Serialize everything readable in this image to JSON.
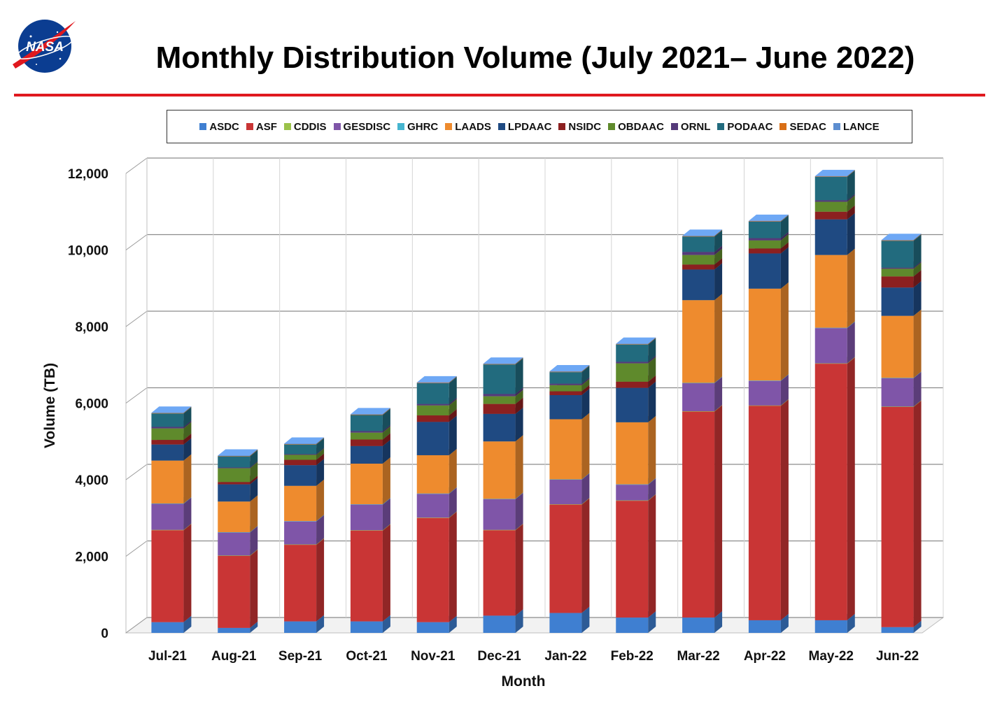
{
  "page": {
    "title": "Monthly Distribution Volume (July 2021– June 2022)",
    "logo_text": "NASA"
  },
  "chart_data": {
    "type": "bar",
    "stacked": true,
    "style": "3d",
    "title": "",
    "xlabel": "Month",
    "ylabel": "Volume (TB)",
    "ylim": [
      0,
      12000
    ],
    "yticks": [
      0,
      2000,
      4000,
      6000,
      8000,
      10000,
      12000
    ],
    "ytick_labels": [
      "0",
      "2,000",
      "4,000",
      "6,000",
      "8,000",
      "10,000",
      "12,000"
    ],
    "grid": true,
    "legend_position": "top",
    "categories": [
      "Jul-21",
      "Aug-21",
      "Sep-21",
      "Oct-21",
      "Nov-21",
      "Dec-21",
      "Jan-22",
      "Feb-22",
      "Mar-22",
      "Apr-22",
      "May-22",
      "Jun-22"
    ],
    "series": [
      {
        "name": "ASDC",
        "color": "#3f7fd1",
        "values": [
          280,
          130,
          300,
          300,
          280,
          450,
          520,
          400,
          400,
          330,
          330,
          150
        ]
      },
      {
        "name": "ASF",
        "color": "#c93535",
        "values": [
          2400,
          1880,
          2000,
          2370,
          2720,
          2230,
          2830,
          3050,
          5380,
          5600,
          6700,
          5750
        ]
      },
      {
        "name": "CDDIS",
        "color": "#9bc24a",
        "values": [
          10,
          10,
          10,
          10,
          10,
          10,
          10,
          10,
          10,
          10,
          10,
          10
        ]
      },
      {
        "name": "GESDISC",
        "color": "#7f55a8",
        "values": [
          680,
          600,
          600,
          670,
          620,
          800,
          640,
          410,
          730,
          640,
          920,
          740
        ]
      },
      {
        "name": "GHRC",
        "color": "#46b5cf",
        "values": [
          10,
          10,
          10,
          10,
          10,
          10,
          10,
          10,
          10,
          10,
          10,
          10
        ]
      },
      {
        "name": "LAADS",
        "color": "#ee8b2e",
        "values": [
          1120,
          800,
          920,
          1060,
          1000,
          1500,
          1570,
          1620,
          2160,
          2400,
          1900,
          1620
        ]
      },
      {
        "name": "LPDAAC",
        "color": "#1f4a82",
        "values": [
          420,
          450,
          540,
          460,
          870,
          720,
          630,
          900,
          800,
          920,
          930,
          740
        ]
      },
      {
        "name": "NSIDC",
        "color": "#8c2020",
        "values": [
          120,
          60,
          140,
          170,
          170,
          260,
          100,
          160,
          130,
          130,
          200,
          290
        ]
      },
      {
        "name": "OBDAAC",
        "color": "#5f8a2c",
        "values": [
          300,
          360,
          130,
          180,
          260,
          200,
          160,
          480,
          250,
          210,
          260,
          200
        ]
      },
      {
        "name": "ORNL",
        "color": "#553a7a",
        "values": [
          40,
          20,
          20,
          40,
          40,
          60,
          40,
          40,
          80,
          60,
          40,
          30
        ]
      },
      {
        "name": "PODAAC",
        "color": "#226b7e",
        "values": [
          350,
          290,
          250,
          420,
          540,
          770,
          300,
          450,
          400,
          430,
          610,
          700
        ]
      },
      {
        "name": "SEDAC",
        "color": "#d96f16",
        "values": [
          10,
          10,
          10,
          10,
          10,
          10,
          10,
          10,
          10,
          10,
          10,
          10
        ]
      },
      {
        "name": "LANCE",
        "color": "#5d8ed0",
        "values": [
          10,
          10,
          10,
          10,
          10,
          10,
          10,
          10,
          10,
          10,
          10,
          10
        ]
      }
    ]
  }
}
